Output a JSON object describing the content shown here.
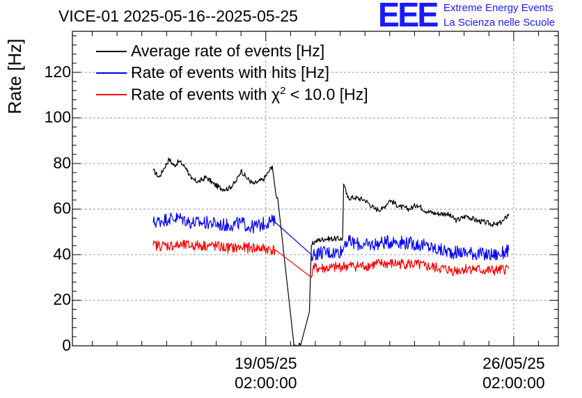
{
  "header": {
    "title": "VICE-01 2025-05-16--2025-05-25",
    "logo_text": "EEE",
    "org_line1": "Extreme Energy Events",
    "org_line2": "La Scienza nelle Scuole"
  },
  "colors": {
    "black": "#000000",
    "blue": "#0000ff",
    "red": "#ff0000",
    "logo": "#1a1aff",
    "grid": "#999999"
  },
  "chart_data": {
    "type": "line",
    "title": "VICE-01 2025-05-16--2025-05-25",
    "ylabel": "Rate [Hz]",
    "xlabel": "",
    "ylim": [
      0,
      138
    ],
    "xlim_days": [
      -3.9,
      5.9
    ],
    "grid": true,
    "legend_position": "top-left",
    "yticks": [
      "0",
      "20",
      "40",
      "60",
      "80",
      "100",
      "120"
    ],
    "xticks": [
      {
        "day": 0,
        "line1": "19/05/25",
        "line2": "02:00:00"
      },
      {
        "day": 5,
        "line1": "26/05/25",
        "line2": "02:00:00"
      }
    ],
    "x_unit": "days since 19/05/25 02:00:00",
    "series": [
      {
        "name": "Average rate of events [Hz]",
        "color": "#000000",
        "noise": 1.2,
        "points": [
          [
            -2.27,
            77
          ],
          [
            -2.15,
            74
          ],
          [
            -2.05,
            78
          ],
          [
            -1.95,
            82
          ],
          [
            -1.85,
            79
          ],
          [
            -1.75,
            81
          ],
          [
            -1.6,
            78
          ],
          [
            -1.5,
            73
          ],
          [
            -1.35,
            72
          ],
          [
            -1.2,
            74
          ],
          [
            -1.05,
            71
          ],
          [
            -0.9,
            69
          ],
          [
            -0.75,
            69
          ],
          [
            -0.6,
            72
          ],
          [
            -0.5,
            77
          ],
          [
            -0.4,
            74
          ],
          [
            -0.25,
            71
          ],
          [
            -0.15,
            72
          ],
          [
            -0.05,
            73
          ],
          [
            0.05,
            76
          ],
          [
            0.13,
            79
          ],
          [
            0.2,
            67
          ],
          [
            0.25,
            63
          ],
          [
            0.57,
            0
          ],
          [
            0.7,
            0
          ],
          [
            0.88,
            15
          ],
          [
            0.92,
            44
          ],
          [
            1.0,
            46
          ],
          [
            1.2,
            47
          ],
          [
            1.4,
            47
          ],
          [
            1.55,
            47
          ],
          [
            1.57,
            71
          ],
          [
            1.65,
            65
          ],
          [
            1.8,
            65
          ],
          [
            2.0,
            64
          ],
          [
            2.2,
            60
          ],
          [
            2.35,
            60
          ],
          [
            2.5,
            64
          ],
          [
            2.7,
            61
          ],
          [
            2.9,
            60
          ],
          [
            3.05,
            62
          ],
          [
            3.25,
            59
          ],
          [
            3.45,
            58
          ],
          [
            3.65,
            58
          ],
          [
            3.85,
            55
          ],
          [
            4.05,
            57
          ],
          [
            4.25,
            55
          ],
          [
            4.45,
            54
          ],
          [
            4.65,
            53
          ],
          [
            4.8,
            55
          ],
          [
            4.9,
            58
          ]
        ]
      },
      {
        "name": "Rate of events with hits [Hz]",
        "color": "#0000ff",
        "noise": 3.0,
        "points": [
          [
            -2.27,
            54
          ],
          [
            -2.1,
            55
          ],
          [
            -1.95,
            56
          ],
          [
            -1.7,
            56
          ],
          [
            -1.5,
            54
          ],
          [
            -1.3,
            54
          ],
          [
            -1.1,
            54
          ],
          [
            -0.9,
            53
          ],
          [
            -0.7,
            53
          ],
          [
            -0.5,
            54
          ],
          [
            -0.3,
            52
          ],
          [
            -0.1,
            53
          ],
          [
            0.1,
            55
          ],
          [
            0.2,
            54
          ],
          [
            0.92,
            40
          ],
          [
            1.1,
            41
          ],
          [
            1.4,
            41
          ],
          [
            1.56,
            42
          ],
          [
            1.6,
            46
          ],
          [
            1.8,
            45
          ],
          [
            2.0,
            44
          ],
          [
            2.3,
            45
          ],
          [
            2.6,
            46
          ],
          [
            2.9,
            45
          ],
          [
            3.2,
            44
          ],
          [
            3.5,
            42
          ],
          [
            3.8,
            41
          ],
          [
            4.1,
            41
          ],
          [
            4.4,
            40
          ],
          [
            4.7,
            40
          ],
          [
            4.9,
            42
          ]
        ]
      },
      {
        "name": "Rate of events with χ² < 10.0 [Hz]",
        "color": "#ff0000",
        "noise": 2.4,
        "points": [
          [
            -2.27,
            44
          ],
          [
            -2.0,
            44
          ],
          [
            -1.7,
            44
          ],
          [
            -1.4,
            44
          ],
          [
            -1.1,
            44
          ],
          [
            -0.8,
            43
          ],
          [
            -0.5,
            43
          ],
          [
            -0.2,
            43
          ],
          [
            0.2,
            42
          ],
          [
            0.92,
            30
          ],
          [
            0.95,
            34
          ],
          [
            1.3,
            34
          ],
          [
            1.6,
            35
          ],
          [
            2.0,
            35
          ],
          [
            2.3,
            36
          ],
          [
            2.6,
            36
          ],
          [
            2.9,
            36
          ],
          [
            3.2,
            35
          ],
          [
            3.5,
            34
          ],
          [
            3.8,
            33
          ],
          [
            4.1,
            34
          ],
          [
            4.4,
            33
          ],
          [
            4.7,
            33
          ],
          [
            4.9,
            34
          ]
        ]
      }
    ]
  },
  "legend": {
    "entries": [
      {
        "label": "Average rate of events [Hz]",
        "color": "#000000"
      },
      {
        "label": "Rate of events with hits [Hz]",
        "color": "#0000ff"
      },
      {
        "label_prefix": "Rate of events with χ",
        "label_sup": "2",
        "label_suffix": " < 10.0 [Hz]",
        "color": "#ff0000"
      }
    ]
  }
}
